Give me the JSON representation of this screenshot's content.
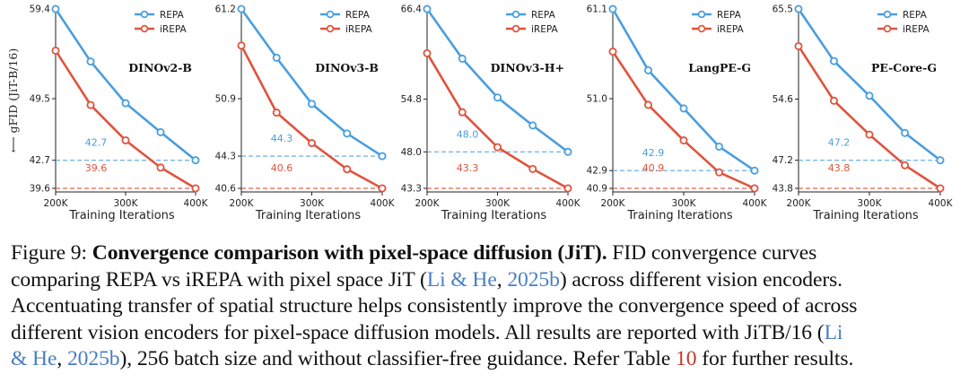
{
  "ylabel": "⟵ gFID (JiT-B/16)",
  "xlabel": "Training Iterations",
  "legend_labels": [
    "REPA",
    "iREPA"
  ],
  "colors": {
    "repa": "#4a9ede",
    "irepa": "#e0533d"
  },
  "chart_data": [
    {
      "type": "line",
      "title": "DINOv2-B",
      "ylim": [
        39.6,
        59.4
      ],
      "x": [
        200000,
        250000,
        300000,
        350000,
        400000
      ],
      "xticks": [
        "200K",
        "300K",
        "400K"
      ],
      "yticks": [
        59.4,
        49.5,
        42.7,
        39.6
      ],
      "series": [
        {
          "name": "REPA",
          "values": [
            59.4,
            53.6,
            49.0,
            45.8,
            42.7
          ]
        },
        {
          "name": "iREPA",
          "values": [
            54.8,
            48.8,
            44.9,
            41.9,
            39.6
          ]
        }
      ],
      "annotations": [
        "42.7",
        "39.6"
      ]
    },
    {
      "type": "line",
      "title": "DINOv3-B",
      "ylim": [
        40.6,
        61.2
      ],
      "x": [
        200000,
        250000,
        300000,
        350000,
        400000
      ],
      "xticks": [
        "200K",
        "300K",
        "400K"
      ],
      "yticks": [
        61.2,
        50.9,
        44.3,
        40.6
      ],
      "series": [
        {
          "name": "REPA",
          "values": [
            61.2,
            55.6,
            50.3,
            46.9,
            44.3
          ]
        },
        {
          "name": "iREPA",
          "values": [
            57.0,
            49.3,
            45.8,
            42.8,
            40.6
          ]
        }
      ],
      "annotations": [
        "44.3",
        "40.6"
      ]
    },
    {
      "type": "line",
      "title": "DINOv3-H+",
      "ylim": [
        43.3,
        66.4
      ],
      "x": [
        200000,
        250000,
        300000,
        350000,
        400000
      ],
      "xticks": [
        "200K",
        "300K",
        "400K"
      ],
      "yticks": [
        66.4,
        54.8,
        48.0,
        43.3
      ],
      "series": [
        {
          "name": "REPA",
          "values": [
            66.4,
            60.0,
            55.0,
            51.4,
            48.0
          ]
        },
        {
          "name": "iREPA",
          "values": [
            60.7,
            53.1,
            48.6,
            45.8,
            43.3
          ]
        }
      ],
      "annotations": [
        "48.0",
        "43.3"
      ]
    },
    {
      "type": "line",
      "title": "LangPE-G",
      "ylim": [
        40.9,
        61.1
      ],
      "x": [
        200000,
        250000,
        300000,
        350000,
        400000
      ],
      "xticks": [
        "200K",
        "300K",
        "400K"
      ],
      "yticks": [
        61.1,
        51.0,
        42.9,
        40.9
      ],
      "series": [
        {
          "name": "REPA",
          "values": [
            61.1,
            54.2,
            49.9,
            45.6,
            42.9
          ]
        },
        {
          "name": "iREPA",
          "values": [
            56.3,
            50.3,
            46.3,
            42.7,
            40.9
          ]
        }
      ],
      "annotations": [
        "42.9",
        "40.9"
      ]
    },
    {
      "type": "line",
      "title": "PE-Core-G",
      "ylim": [
        43.8,
        65.5
      ],
      "x": [
        200000,
        250000,
        300000,
        350000,
        400000
      ],
      "xticks": [
        "200K",
        "300K",
        "400K"
      ],
      "yticks": [
        65.5,
        54.6,
        47.2,
        43.8
      ],
      "series": [
        {
          "name": "REPA",
          "values": [
            65.5,
            59.2,
            55.0,
            50.5,
            47.2
          ]
        },
        {
          "name": "iREPA",
          "values": [
            61.0,
            54.4,
            50.3,
            46.6,
            43.8
          ]
        }
      ],
      "annotations": [
        "47.2",
        "43.8"
      ]
    }
  ],
  "caption": {
    "fig_label": "Figure 9: ",
    "bold_title": "Convergence comparison with pixel-space diffusion (JiT).",
    "l1_rest": " FID convergence curves",
    "l2_a": "comparing REPA vs iREPA with pixel space JiT (",
    "cite_author": "Li & He",
    "cite_sep": ", ",
    "cite_year": "2025b",
    "l2_b": ") across different vision encoders.",
    "l3": "Accentuating transfer of spatial structure helps consistently improve the convergence speed of across",
    "l4_a": "different vision encoders for pixel-space diffusion models. All results are reported with JiTB/16 (",
    "l4_cite": "Li",
    "l5_cite_a": "& He",
    "l5_b": "), 256 batch size and without classifier-free guidance. Refer Table ",
    "table_ref": "10",
    "l5_c": " for further results."
  }
}
